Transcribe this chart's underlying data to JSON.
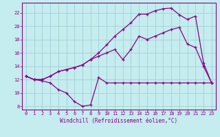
{
  "xlabel": "Windchill (Refroidissement éolien,°C)",
  "xlim": [
    -0.5,
    23.5
  ],
  "ylim": [
    7.5,
    23.5
  ],
  "yticks": [
    8,
    10,
    12,
    14,
    16,
    18,
    20,
    22
  ],
  "xticks": [
    0,
    1,
    2,
    3,
    4,
    5,
    6,
    7,
    8,
    9,
    10,
    11,
    12,
    13,
    14,
    15,
    16,
    17,
    18,
    19,
    20,
    21,
    22,
    23
  ],
  "bg_color": "#c5ecee",
  "grid_color": "#a0d0d4",
  "line_color": "#880088",
  "line1_x": [
    0,
    1,
    2,
    3,
    4,
    5,
    6,
    7,
    8,
    9,
    10,
    11,
    12,
    13,
    14,
    15,
    16,
    17,
    18,
    19,
    20,
    21,
    22,
    23
  ],
  "line1_y": [
    12.5,
    12.0,
    11.8,
    11.5,
    10.5,
    10.0,
    8.7,
    8.0,
    8.2,
    12.3,
    11.5,
    11.5,
    11.5,
    11.5,
    11.5,
    11.5,
    11.5,
    11.5,
    11.5,
    11.5,
    11.5,
    11.5,
    11.5,
    11.5
  ],
  "line2_x": [
    0,
    1,
    2,
    3,
    4,
    5,
    6,
    7,
    8,
    9,
    10,
    11,
    12,
    13,
    14,
    15,
    16,
    17,
    18,
    19,
    20,
    21,
    22,
    23
  ],
  "line2_y": [
    12.5,
    12.0,
    12.0,
    12.5,
    13.2,
    13.5,
    13.8,
    14.2,
    15.0,
    15.5,
    16.0,
    16.5,
    15.0,
    16.5,
    18.5,
    18.0,
    18.5,
    19.0,
    19.5,
    19.8,
    17.3,
    16.8,
    14.0,
    11.5
  ],
  "line3_x": [
    0,
    1,
    2,
    3,
    4,
    5,
    6,
    7,
    8,
    9,
    10,
    11,
    12,
    13,
    14,
    15,
    16,
    17,
    18,
    19,
    20,
    21,
    22,
    23
  ],
  "line3_y": [
    12.5,
    12.0,
    12.0,
    12.5,
    13.2,
    13.5,
    13.8,
    14.2,
    15.0,
    16.0,
    17.2,
    18.5,
    19.5,
    20.5,
    21.8,
    21.8,
    22.3,
    22.6,
    22.7,
    21.7,
    21.0,
    21.5,
    14.5,
    11.5
  ]
}
